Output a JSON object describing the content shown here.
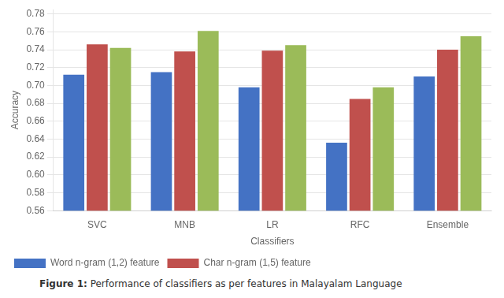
{
  "chart_data": {
    "type": "bar",
    "categories": [
      "SVC",
      "MNB",
      "LR",
      "RFC",
      "Ensemble"
    ],
    "series": [
      {
        "name": "Word n-gram (1,2) feature",
        "color": "#4472c4",
        "values": [
          0.712,
          0.715,
          0.698,
          0.636,
          0.71
        ]
      },
      {
        "name": "Char n-gram (1,5) feature",
        "color": "#c0504d",
        "values": [
          0.746,
          0.738,
          0.739,
          0.685,
          0.74
        ]
      },
      {
        "color": "#9bbb59",
        "values": [
          0.742,
          0.761,
          0.745,
          0.698,
          0.755
        ]
      }
    ],
    "xlabel": "Classifiers",
    "ylabel": "Accuracy",
    "ylim": [
      0.56,
      0.785
    ],
    "yticks": [
      0.56,
      0.58,
      {
        "value": 0.6,
        "label": "0.60"
      },
      0.62,
      0.64,
      0.66,
      0.68,
      {
        "value": 0.7,
        "label": "0.70"
      },
      0.72,
      0.74,
      0.76,
      0.78
    ],
    "grid": true,
    "legend": "bottom",
    "caption": [
      "Figure 1:",
      "Performance of classifiers as per features in Malayalam Language"
    ]
  }
}
